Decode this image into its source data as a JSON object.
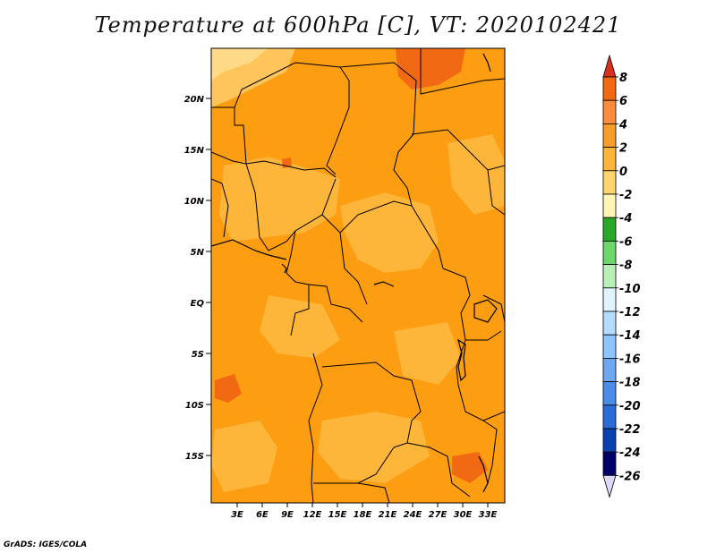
{
  "title": "Temperature at 600hPa [C], VT: 2020102421",
  "credit": "GrADS: IGES/COLA",
  "lat_ticks": [
    "20N",
    "15N",
    "10N",
    "5N",
    "EQ",
    "5S",
    "10S",
    "15S"
  ],
  "lon_ticks": [
    "3E",
    "6E",
    "9E",
    "12E",
    "15E",
    "18E",
    "21E",
    "24E",
    "27E",
    "30E",
    "33E"
  ],
  "colorbar": {
    "labels": [
      "8",
      "6",
      "4",
      "2",
      "0",
      "-2",
      "-4",
      "-6",
      "-8",
      "-10",
      "-12",
      "-14",
      "-16",
      "-18",
      "-20",
      "-22",
      "-24",
      "-26"
    ],
    "colors": [
      "#d7301f",
      "#f16913",
      "#fd8d3c",
      "#f99d2a",
      "#fdb53a",
      "#fdd570",
      "#fff5b4",
      "#29a829",
      "#6cd86c",
      "#b8f0b8",
      "#e0f4ff",
      "#b4dcff",
      "#8ec4ff",
      "#6ea8f0",
      "#4a8ce8",
      "#2a6cd8",
      "#0a40b0",
      "#000066",
      "#dcd8f8"
    ]
  },
  "colors": {
    "dominant": "#fd9d12",
    "light": "#fdb53a",
    "hot": "#f16913"
  }
}
